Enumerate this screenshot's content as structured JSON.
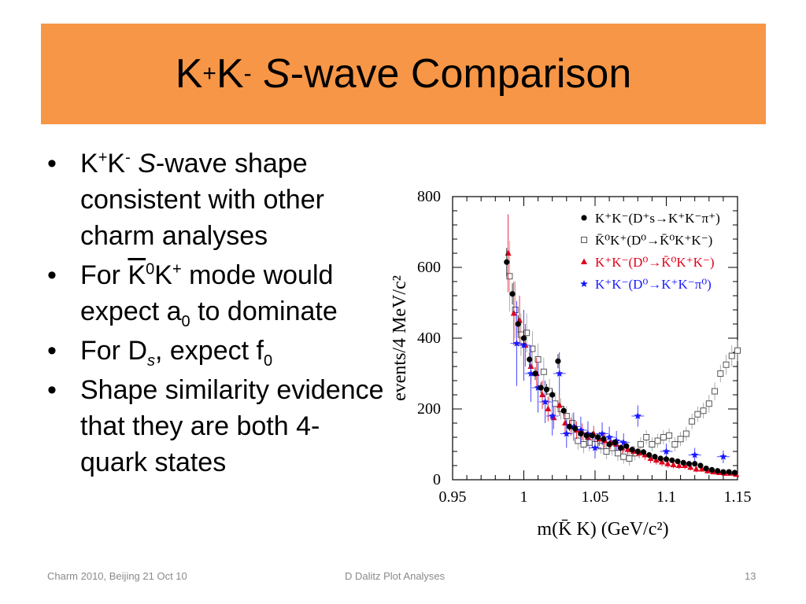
{
  "slide": {
    "title_parts": [
      "K",
      "+",
      "K",
      "-",
      "S",
      "-wave Comparison"
    ],
    "bullets": [
      {
        "parts": [
          "K",
          "+",
          "K",
          "-",
          " ",
          "S",
          "-wave shape consistent with other charm analyses"
        ]
      },
      {
        "parts": [
          "For ",
          "K",
          "0",
          "K",
          "+",
          " mode would expect a",
          "0",
          " to dominate"
        ]
      },
      {
        "parts": [
          "For D",
          "s",
          ", expect f",
          "0"
        ]
      },
      {
        "parts": [
          "Shape similarity evidence that they are both 4-quark states"
        ]
      }
    ],
    "footer": {
      "left": "Charm 2010, Beijing 21 Oct 10",
      "center": "D Dalitz Plot Analyses",
      "right": "13"
    },
    "colors": {
      "title_band": "#F79646",
      "footer_text": "#8a8a8a"
    }
  },
  "chart_data": {
    "type": "scatter",
    "xlabel": "m(K̄ K) (GeV/c²)",
    "ylabel": "events/4 MeV/c²",
    "xlim": [
      0.95,
      1.15
    ],
    "ylim": [
      0,
      800
    ],
    "xticks": [
      "0.95",
      "1",
      "1.05",
      "1.1",
      "1.15"
    ],
    "yticks": [
      "0",
      "200",
      "400",
      "600",
      "800"
    ],
    "legend_position": "top-right",
    "series": [
      {
        "name": "K⁺K⁻(D⁺s→K⁺K⁻π⁺)",
        "marker": "filled-circle",
        "color": "#000000",
        "x": [
          0.988,
          0.992,
          0.996,
          1.0,
          1.004,
          1.008,
          1.012,
          1.016,
          1.02,
          1.024,
          1.028,
          1.032,
          1.036,
          1.04,
          1.044,
          1.048,
          1.052,
          1.056,
          1.06,
          1.064,
          1.068,
          1.072,
          1.076,
          1.08,
          1.084,
          1.088,
          1.092,
          1.096,
          1.1,
          1.104,
          1.108,
          1.112,
          1.116,
          1.12,
          1.124,
          1.128,
          1.132,
          1.136,
          1.14,
          1.144,
          1.148
        ],
        "y": [
          615,
          525,
          440,
          400,
          340,
          300,
          260,
          255,
          240,
          335,
          195,
          150,
          145,
          130,
          125,
          125,
          120,
          115,
          100,
          105,
          90,
          95,
          85,
          80,
          78,
          70,
          65,
          60,
          58,
          55,
          52,
          48,
          45,
          45,
          40,
          32,
          28,
          25,
          22,
          22,
          20
        ],
        "err": [
          40,
          30,
          25,
          22,
          20,
          18,
          16,
          16,
          15,
          20,
          14,
          12,
          12,
          11,
          11,
          11,
          10,
          10,
          10,
          10,
          9,
          9,
          9,
          9,
          9,
          8,
          8,
          8,
          8,
          7,
          7,
          7,
          7,
          7,
          6,
          6,
          5,
          5,
          5,
          5,
          5
        ]
      },
      {
        "name": "K̄⁰K⁺(D⁰→K̄⁰K⁺K⁻)",
        "marker": "open-square",
        "color": "#555555",
        "x": [
          0.99,
          0.994,
          0.998,
          1.002,
          1.006,
          1.01,
          1.014,
          1.018,
          1.022,
          1.026,
          1.03,
          1.034,
          1.038,
          1.042,
          1.046,
          1.05,
          1.054,
          1.058,
          1.062,
          1.066,
          1.07,
          1.074,
          1.078,
          1.082,
          1.086,
          1.09,
          1.094,
          1.098,
          1.102,
          1.106,
          1.11,
          1.114,
          1.118,
          1.122,
          1.126,
          1.13,
          1.134,
          1.138,
          1.142,
          1.146,
          1.15
        ],
        "y": [
          575,
          480,
          410,
          415,
          370,
          340,
          305,
          250,
          215,
          200,
          180,
          160,
          110,
          100,
          105,
          100,
          95,
          80,
          90,
          75,
          65,
          60,
          75,
          100,
          120,
          100,
          110,
          120,
          125,
          100,
          115,
          130,
          165,
          185,
          195,
          215,
          250,
          300,
          325,
          350,
          365
        ],
        "err": [
          100,
          80,
          60,
          55,
          50,
          45,
          40,
          35,
          32,
          30,
          28,
          28,
          25,
          25,
          25,
          25,
          22,
          22,
          22,
          22,
          20,
          20,
          20,
          20,
          20,
          20,
          20,
          20,
          20,
          20,
          20,
          20,
          22,
          22,
          22,
          25,
          25,
          25,
          28,
          30,
          30
        ]
      },
      {
        "name": "K⁺K⁻(D⁰→K̄⁰K⁺K⁻)",
        "marker": "filled-triangle",
        "color": "#e0001b",
        "x": [
          0.989,
          0.993,
          0.997,
          1.001,
          1.005,
          1.009,
          1.013,
          1.017,
          1.021,
          1.025,
          1.029,
          1.033,
          1.037,
          1.041,
          1.045,
          1.049,
          1.053,
          1.057,
          1.061,
          1.065,
          1.069,
          1.073,
          1.077,
          1.081,
          1.085,
          1.089,
          1.093,
          1.097,
          1.101,
          1.105,
          1.109,
          1.113,
          1.117,
          1.121,
          1.125,
          1.129,
          1.133,
          1.137,
          1.141,
          1.145,
          1.149
        ],
        "y": [
          640,
          470,
          450,
          380,
          320,
          300,
          240,
          200,
          175,
          210,
          160,
          150,
          140,
          135,
          120,
          130,
          115,
          110,
          105,
          100,
          90,
          85,
          80,
          75,
          70,
          60,
          55,
          50,
          45,
          42,
          40,
          40,
          35,
          30,
          30,
          25,
          22,
          20,
          18,
          18,
          15
        ],
        "err": [
          110,
          90,
          70,
          60,
          50,
          45,
          40,
          35,
          32,
          30,
          28,
          26,
          25,
          24,
          22,
          22,
          20,
          20,
          18,
          18,
          16,
          16,
          15,
          14,
          14,
          13,
          12,
          12,
          11,
          10,
          10,
          10,
          9,
          9,
          8,
          8,
          7,
          7,
          7,
          6,
          6
        ]
      },
      {
        "name": "K⁺K⁻(D⁰→K⁺K⁻π⁰)",
        "marker": "star",
        "color": "#1a1aff",
        "x": [
          0.995,
          1.0,
          1.005,
          1.01,
          1.015,
          1.02,
          1.025,
          1.03,
          1.035,
          1.04,
          1.045,
          1.05,
          1.055,
          1.06,
          1.065,
          1.07,
          1.08,
          1.1,
          1.12,
          1.14
        ],
        "y": [
          385,
          380,
          300,
          260,
          220,
          180,
          300,
          130,
          150,
          140,
          130,
          90,
          130,
          120,
          110,
          105,
          180,
          80,
          70,
          65
        ],
        "err": [
          120,
          100,
          80,
          70,
          60,
          55,
          60,
          40,
          40,
          38,
          35,
          30,
          32,
          30,
          28,
          26,
          30,
          22,
          20,
          18
        ]
      }
    ]
  }
}
